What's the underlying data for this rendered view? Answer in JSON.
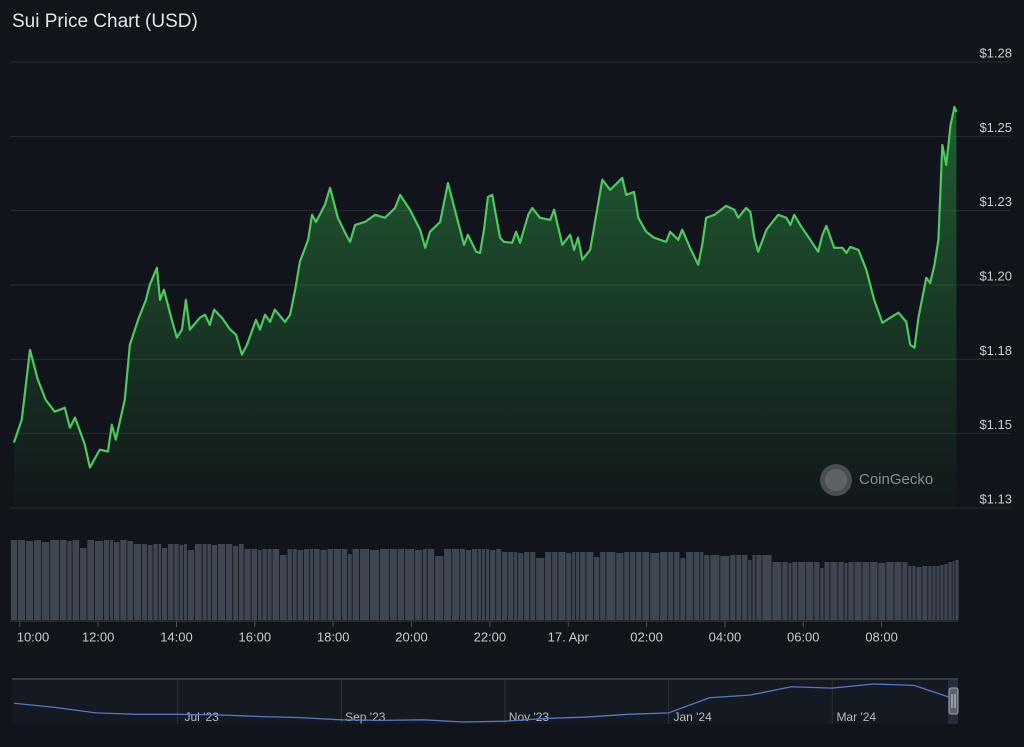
{
  "chart_data": {
    "type": "line",
    "title": "Sui Price Chart (USD)",
    "watermark": "CoinGecko",
    "x": [
      9.85,
      10.05,
      10.26,
      10.46,
      10.66,
      10.89,
      11.15,
      11.28,
      11.41,
      11.66,
      11.79,
      12.04,
      12.25,
      12.35,
      12.45,
      12.68,
      12.81,
      13.02,
      13.22,
      13.32,
      13.5,
      13.58,
      13.68,
      13.88,
      14.01,
      14.14,
      14.24,
      14.34,
      14.6,
      14.73,
      14.85,
      14.96,
      15.16,
      15.37,
      15.52,
      15.67,
      15.8,
      16.03,
      16.13,
      16.26,
      16.39,
      16.51,
      16.77,
      16.9,
      17.03,
      17.15,
      17.36,
      17.46,
      17.56,
      17.79,
      17.92,
      18.12,
      18.33,
      18.43,
      18.56,
      18.81,
      19.07,
      19.32,
      19.58,
      19.71,
      19.96,
      20.22,
      20.35,
      20.47,
      20.73,
      20.93,
      21.14,
      21.34,
      21.44,
      21.65,
      21.75,
      21.85,
      21.95,
      22.06,
      22.26,
      22.36,
      22.57,
      22.67,
      22.77,
      22.98,
      23.08,
      23.28,
      23.54,
      23.64,
      23.85,
      24.05,
      24.15,
      24.25,
      24.36,
      24.56,
      24.76,
      24.87,
      25.07,
      25.38,
      25.48,
      25.68,
      25.79,
      25.99,
      26.19,
      26.5,
      26.6,
      26.81,
      26.91,
      27.11,
      27.32,
      27.42,
      27.52,
      27.73,
      28.03,
      28.24,
      28.34,
      28.54,
      28.65,
      28.75,
      28.85,
      29.06,
      29.36,
      29.57,
      29.67,
      29.77,
      29.97,
      30.18,
      30.38,
      30.49,
      30.59,
      30.79,
      31.0,
      31.1,
      31.2,
      31.41,
      31.61,
      31.81,
      32.02,
      32.22,
      32.43,
      32.63,
      32.73,
      32.84,
      32.94,
      33.14,
      33.24,
      33.35,
      33.45,
      33.55,
      33.65,
      33.76,
      33.86,
      33.91
    ],
    "series": [
      {
        "color": "#4cc95f",
        "values": [
          1.147,
          1.1547,
          1.1782,
          1.1682,
          1.1614,
          1.1574,
          1.1587,
          1.152,
          1.1554,
          1.1463,
          1.1386,
          1.1446,
          1.144,
          1.153,
          1.148,
          1.1614,
          1.1799,
          1.1883,
          1.195,
          1.2001,
          1.2058,
          1.195,
          1.1984,
          1.1883,
          1.1823,
          1.185,
          1.195,
          1.185,
          1.189,
          1.19,
          1.1866,
          1.1917,
          1.189,
          1.185,
          1.1833,
          1.1766,
          1.1799,
          1.1883,
          1.185,
          1.19,
          1.1876,
          1.1917,
          1.1876,
          1.19,
          1.1984,
          1.2078,
          1.2152,
          1.2236,
          1.2212,
          1.227,
          1.2327,
          1.2226,
          1.2169,
          1.2145,
          1.2202,
          1.2212,
          1.2236,
          1.2226,
          1.2259,
          1.2303,
          1.2253,
          1.2186,
          1.2125,
          1.2179,
          1.2212,
          1.2343,
          1.2236,
          1.2135,
          1.2169,
          1.2112,
          1.2108,
          1.2186,
          1.2296,
          1.2303,
          1.2159,
          1.2145,
          1.2142,
          1.2179,
          1.2142,
          1.2236,
          1.2259,
          1.2226,
          1.2219,
          1.2253,
          1.2135,
          1.2169,
          1.2118,
          1.2159,
          1.2085,
          1.2118,
          1.227,
          1.2354,
          1.232,
          1.236,
          1.2303,
          1.2313,
          1.2226,
          1.2179,
          1.2159,
          1.2145,
          1.2179,
          1.2152,
          1.2186,
          1.2125,
          1.2068,
          1.2135,
          1.2226,
          1.2236,
          1.2266,
          1.2253,
          1.2226,
          1.2259,
          1.2246,
          1.2159,
          1.2112,
          1.2186,
          1.2236,
          1.2226,
          1.2202,
          1.2236,
          1.2192,
          1.2152,
          1.2112,
          1.2169,
          1.2199,
          1.2125,
          1.2125,
          1.2108,
          1.2128,
          1.2118,
          1.2051,
          1.195,
          1.1873,
          1.189,
          1.1907,
          1.1876,
          1.1799,
          1.1789,
          1.189,
          1.2024,
          1.2007,
          1.2068,
          1.2152,
          1.2471,
          1.2404,
          1.2538,
          1.2599,
          1.2582
        ]
      }
    ],
    "volume": {
      "color": "#3f4652",
      "values": [
        80,
        80,
        79,
        80,
        78,
        80,
        80,
        79,
        80,
        72,
        80,
        79,
        80,
        80,
        78,
        80,
        79,
        76,
        76,
        75,
        76,
        76,
        72,
        76,
        76,
        75,
        76,
        70,
        76,
        76,
        76,
        75,
        76,
        76,
        74,
        76,
        71,
        71,
        70,
        71,
        71,
        71,
        65,
        71,
        71,
        70,
        71,
        71,
        71,
        70,
        71,
        71,
        71,
        66,
        71,
        71,
        70,
        71,
        71,
        71,
        71,
        70,
        71,
        71,
        64,
        71,
        71,
        71,
        70,
        71,
        71,
        71,
        71,
        70,
        71,
        68,
        68,
        68,
        67,
        68,
        68,
        62,
        68,
        68,
        68,
        67,
        68,
        68,
        68,
        68,
        63,
        68,
        68,
        67,
        68,
        68,
        68,
        68,
        67,
        68,
        68,
        68,
        62,
        68,
        68,
        68,
        65,
        65,
        64,
        65,
        65,
        65,
        60,
        65,
        65,
        65,
        58,
        58,
        57,
        58,
        58,
        58,
        58,
        52,
        58,
        58,
        58,
        57,
        58,
        58,
        58,
        58,
        57,
        58,
        58,
        58,
        54,
        54,
        53,
        54,
        54,
        54,
        54,
        55,
        56,
        58,
        59,
        60
      ]
    },
    "xlim": [
      9.75,
      33.95
    ],
    "xticks": [
      {
        "value": 10,
        "label": "10:00"
      },
      {
        "value": 12,
        "label": "12:00"
      },
      {
        "value": 14,
        "label": "14:00"
      },
      {
        "value": 16,
        "label": "16:00"
      },
      {
        "value": 18,
        "label": "18:00"
      },
      {
        "value": 20,
        "label": "20:00"
      },
      {
        "value": 22,
        "label": "22:00"
      },
      {
        "value": 24,
        "label": "17. Apr"
      },
      {
        "value": 26,
        "label": "02:00"
      },
      {
        "value": 28,
        "label": "04:00"
      },
      {
        "value": 30,
        "label": "06:00"
      },
      {
        "value": 32,
        "label": "08:00"
      }
    ],
    "ylim": [
      1.125,
      1.275
    ],
    "yticks": [
      {
        "value": 1.125,
        "label": "$1.13"
      },
      {
        "value": 1.15,
        "label": "$1.15"
      },
      {
        "value": 1.175,
        "label": "$1.18"
      },
      {
        "value": 1.2,
        "label": "$1.20"
      },
      {
        "value": 1.225,
        "label": "$1.23"
      },
      {
        "value": 1.25,
        "label": "$1.25"
      },
      {
        "value": 1.275,
        "label": "$1.28"
      }
    ],
    "grid": true,
    "navigator": {
      "color": "#5677c9",
      "values": [
        1.1,
        0.95,
        0.75,
        0.7,
        0.7,
        0.68,
        0.62,
        0.58,
        0.5,
        0.48,
        0.5,
        0.42,
        0.45,
        0.55,
        0.6,
        0.7,
        0.75,
        1.3,
        1.4,
        1.7,
        1.65,
        1.8,
        1.75,
        1.25
      ],
      "ticks": [
        {
          "value": 4,
          "label": "Jul '23"
        },
        {
          "value": 8,
          "label": "Sep '23"
        },
        {
          "value": 12,
          "label": "Nov '23"
        },
        {
          "value": 16,
          "label": "Jan '24"
        },
        {
          "value": 20,
          "label": "Mar '24"
        }
      ]
    }
  }
}
